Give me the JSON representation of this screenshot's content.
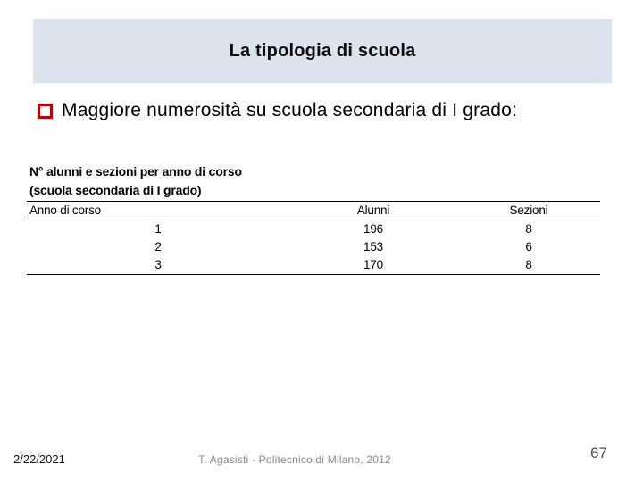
{
  "title": "La tipologia di scuola",
  "bullet": {
    "text": "Maggiore numerosità su scuola secondaria di I grado:"
  },
  "table": {
    "caption_line1": "N° alunni e sezioni per anno di corso",
    "caption_line2": "(scuola secondaria di I grado)",
    "columns": [
      "Anno di corso",
      "Alunni",
      "Sezioni"
    ],
    "rows": [
      [
        "1",
        "196",
        "8"
      ],
      [
        "2",
        "153",
        "6"
      ],
      [
        "3",
        "170",
        "8"
      ]
    ]
  },
  "footer": {
    "date": "2/22/2021",
    "credit": "T. Agasisti - Politecnico di Milano, 2012",
    "page": "67"
  },
  "icons": {
    "bullet": "red-outline-square"
  },
  "colors": {
    "band_background": "#dbe3ef",
    "bullet_red": "#c00000",
    "text_black": "#000000",
    "footer_gray": "#8a8a8a",
    "page_number_gray": "#4a4a4a"
  }
}
